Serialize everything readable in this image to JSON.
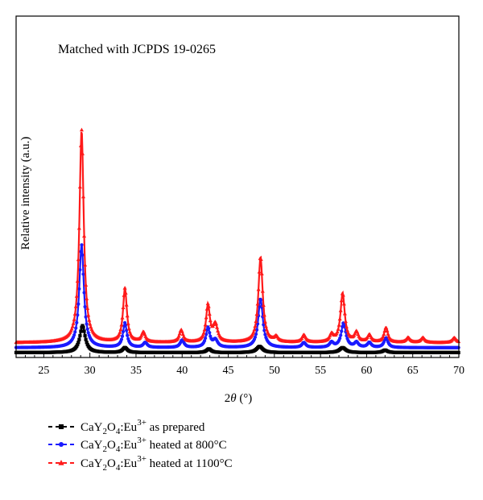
{
  "chart_data": {
    "type": "line",
    "title": "",
    "annotation": "Matched with JCPDS 19-0265",
    "xlabel": "2θ (°)",
    "ylabel": "Relative intensity (a.u.)",
    "xlim": [
      22,
      70
    ],
    "ylim": [
      0,
      100
    ],
    "xticks": [
      25,
      30,
      35,
      40,
      45,
      50,
      55,
      60,
      65,
      70
    ],
    "legend_position": "below",
    "series": [
      {
        "name": "CaY2O4:Eu3+ as prepared",
        "legend": {
          "prefix": "CaY",
          "sub1": "2",
          "mid": "O",
          "sub2": "4",
          "colon": ":Eu",
          "sup": "3+",
          "suffix": " as prepared"
        },
        "color": "#000000",
        "marker": "square",
        "baseline": 2,
        "peaks": [
          [
            29.2,
            11,
            0.35
          ],
          [
            33.8,
            2,
            0.3
          ],
          [
            42.9,
            1.5,
            0.3
          ],
          [
            48.4,
            2.5,
            0.4
          ],
          [
            57.4,
            2,
            0.4
          ],
          [
            62.0,
            1,
            0.3
          ]
        ]
      },
      {
        "name": "CaY2O4:Eu3+ heated at 800°C",
        "legend": {
          "prefix": "CaY",
          "sub1": "2",
          "mid": "O",
          "sub2": "4",
          "colon": ":Eu",
          "sup": "3+",
          "suffix": " heated at 800°C"
        },
        "color": "#1a1aff",
        "marker": "circle",
        "baseline": 4,
        "peaks": [
          [
            29.1,
            42,
            0.3
          ],
          [
            33.8,
            10,
            0.25
          ],
          [
            36.0,
            2,
            0.25
          ],
          [
            40.0,
            3,
            0.25
          ],
          [
            42.8,
            8,
            0.25
          ],
          [
            43.6,
            3,
            0.3
          ],
          [
            48.5,
            20,
            0.3
          ],
          [
            53.2,
            2,
            0.25
          ],
          [
            56.2,
            2,
            0.25
          ],
          [
            57.5,
            10,
            0.3
          ],
          [
            58.9,
            2,
            0.25
          ],
          [
            60.3,
            2,
            0.25
          ],
          [
            62.1,
            4,
            0.25
          ]
        ]
      },
      {
        "name": "CaY2O4:Eu3+ heated at 1100°C",
        "legend": {
          "prefix": "CaY",
          "sub1": "2",
          "mid": "O",
          "sub2": "4",
          "colon": ":Eu",
          "sup": "3+",
          "suffix": " heated at 1100°C"
        },
        "color": "#ff1a1a",
        "marker": "triangle",
        "baseline": 6,
        "peaks": [
          [
            29.1,
            87,
            0.28
          ],
          [
            33.8,
            22,
            0.25
          ],
          [
            35.8,
            4,
            0.25
          ],
          [
            39.9,
            5,
            0.25
          ],
          [
            42.8,
            15,
            0.25
          ],
          [
            43.6,
            7,
            0.3
          ],
          [
            48.5,
            35,
            0.28
          ],
          [
            50.2,
            2,
            0.25
          ],
          [
            53.2,
            3,
            0.25
          ],
          [
            56.2,
            3,
            0.25
          ],
          [
            57.4,
            20,
            0.28
          ],
          [
            58.9,
            4,
            0.25
          ],
          [
            60.3,
            3,
            0.25
          ],
          [
            62.1,
            6,
            0.25
          ],
          [
            64.5,
            2,
            0.25
          ],
          [
            66.1,
            2,
            0.25
          ],
          [
            69.5,
            2,
            0.25
          ]
        ]
      }
    ]
  }
}
